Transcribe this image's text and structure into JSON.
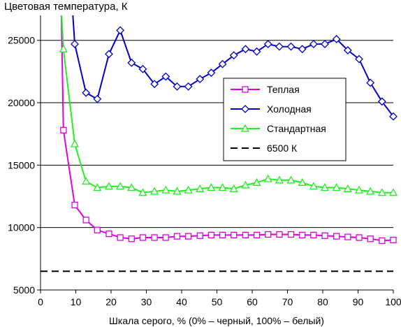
{
  "chart_data": {
    "type": "line",
    "title": "Цветовая температура, К",
    "xlabel": "Шкала серого, % (0% – черный, 100% – белый)",
    "ylabel": "",
    "xlim": [
      0,
      100
    ],
    "ylim": [
      5000,
      27000
    ],
    "xticks": [
      "0",
      "10",
      "20",
      "30",
      "40",
      "50",
      "60",
      "70",
      "80",
      "90",
      "100"
    ],
    "yticks": [
      "5000",
      "10000",
      "15000",
      "20000",
      "25000"
    ],
    "grid": "horizontal",
    "legend_position": "center-right",
    "series": [
      {
        "name": "Теплая",
        "color": "#e000e0",
        "marker": "square",
        "x": [
          6.5,
          9.7,
          12.9,
          16.1,
          19.4,
          22.6,
          25.8,
          29.0,
          32.3,
          35.5,
          38.7,
          41.9,
          45.2,
          48.4,
          51.6,
          54.8,
          58.1,
          61.3,
          64.5,
          67.7,
          71.0,
          74.2,
          77.4,
          80.6,
          83.9,
          87.1,
          90.3,
          93.5,
          96.8,
          100
        ],
        "y": [
          17800,
          11800,
          10600,
          9800,
          9500,
          9200,
          9100,
          9200,
          9200,
          9200,
          9300,
          9300,
          9350,
          9400,
          9400,
          9400,
          9400,
          9400,
          9450,
          9450,
          9450,
          9400,
          9400,
          9350,
          9300,
          9250,
          9200,
          9100,
          8950,
          9000
        ]
      },
      {
        "name": "Холодная",
        "color": "#0000c8",
        "marker": "diamond",
        "x": [
          9.7,
          12.9,
          16.1,
          19.4,
          22.6,
          25.8,
          29.0,
          32.3,
          35.5,
          38.7,
          41.9,
          45.2,
          48.4,
          51.6,
          54.8,
          58.1,
          61.3,
          64.5,
          67.7,
          71.0,
          74.2,
          77.4,
          80.6,
          83.9,
          87.1,
          90.3,
          93.5,
          96.8,
          100
        ],
        "y": [
          24700,
          20800,
          20300,
          23900,
          25800,
          23200,
          22700,
          21500,
          22100,
          21300,
          21300,
          21900,
          22400,
          23100,
          23800,
          24300,
          24100,
          24700,
          24500,
          24500,
          24300,
          24700,
          24700,
          25100,
          24200,
          23500,
          21600,
          20100,
          18900
        ]
      },
      {
        "name": "Стандартная",
        "color": "#22ee22",
        "marker": "triangle",
        "x": [
          6.5,
          9.7,
          12.9,
          16.1,
          19.4,
          22.6,
          25.8,
          29.0,
          32.3,
          35.5,
          38.7,
          41.9,
          45.2,
          48.4,
          51.6,
          54.8,
          58.1,
          61.3,
          64.5,
          67.7,
          71.0,
          74.2,
          77.4,
          80.6,
          83.9,
          87.1,
          90.3,
          93.5,
          96.8,
          100
        ],
        "y": [
          24300,
          16700,
          13700,
          13200,
          13300,
          13300,
          13200,
          12800,
          12900,
          13000,
          12900,
          13000,
          13100,
          13200,
          13200,
          13100,
          13400,
          13600,
          13900,
          13800,
          13800,
          13600,
          13300,
          13200,
          13200,
          13100,
          13000,
          12900,
          12800,
          12800
        ]
      },
      {
        "name": "6500 К",
        "color": "#000000",
        "marker": "none",
        "dashed": true,
        "x": [
          0,
          100
        ],
        "y": [
          6500,
          6500
        ]
      }
    ]
  }
}
